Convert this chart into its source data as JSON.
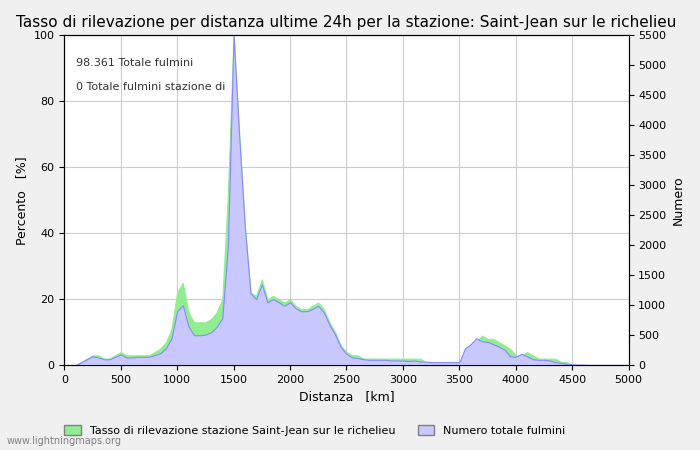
{
  "title": "Tasso di rilevazione per distanza ultime 24h per la stazione: Saint-Jean sur le richelieu",
  "xlabel": "Distanza   [km]",
  "ylabel_left": "Percento   [%]",
  "ylabel_right": "Numero",
  "annotation_line1": "98.361 Totale fulmini",
  "annotation_line2": "0 Totale fulmini stazione di",
  "legend_green": "Tasso di rilevazione stazione Saint-Jean sur le richelieu",
  "legend_blue": "Numero totale fulmini",
  "watermark": "www.lightningmaps.org",
  "xlim": [
    0,
    5000
  ],
  "ylim_left": [
    0,
    100
  ],
  "ylim_right": [
    0,
    5500
  ],
  "xticks": [
    0,
    500,
    1000,
    1500,
    2000,
    2500,
    3000,
    3500,
    4000,
    4500,
    5000
  ],
  "yticks_left": [
    0,
    20,
    40,
    60,
    80,
    100
  ],
  "yticks_right": [
    0,
    500,
    1000,
    1500,
    2000,
    2500,
    3000,
    3500,
    4000,
    4500,
    5000,
    5500
  ],
  "bg_color": "#f0f0f0",
  "plot_bg_color": "#ffffff",
  "fill_blue_color": "#c8c8ff",
  "fill_blue_edge": "#8888ff",
  "fill_green_color": "#90ee90",
  "fill_green_edge": "#90ee90",
  "grid_color": "#cccccc",
  "title_fontsize": 11,
  "label_fontsize": 9,
  "tick_fontsize": 8,
  "x_data": [
    0,
    50,
    100,
    150,
    200,
    250,
    300,
    350,
    400,
    450,
    500,
    550,
    600,
    650,
    700,
    750,
    800,
    850,
    900,
    950,
    1000,
    1050,
    1100,
    1150,
    1200,
    1250,
    1300,
    1350,
    1400,
    1450,
    1500,
    1550,
    1600,
    1650,
    1700,
    1750,
    1800,
    1850,
    1900,
    1950,
    2000,
    2050,
    2100,
    2150,
    2200,
    2250,
    2300,
    2350,
    2400,
    2450,
    2500,
    2550,
    2600,
    2650,
    2700,
    2750,
    2800,
    2850,
    2900,
    2950,
    3000,
    3050,
    3100,
    3150,
    3200,
    3250,
    3300,
    3350,
    3400,
    3450,
    3500,
    3550,
    3600,
    3650,
    3700,
    3750,
    3800,
    3850,
    3900,
    3950,
    4000,
    4050,
    4100,
    4150,
    4200,
    4250,
    4300,
    4350,
    4400,
    4450,
    4500,
    4550,
    4600,
    4650,
    4700,
    4750,
    4800,
    4850,
    4900,
    4950,
    5000
  ],
  "y_percent": [
    0,
    0,
    0,
    1,
    2,
    3,
    3,
    2,
    2,
    3,
    4,
    3,
    3,
    3,
    3,
    3,
    4,
    5,
    7,
    11,
    22,
    25,
    16,
    13,
    13,
    13,
    14,
    16,
    20,
    52,
    100,
    70,
    42,
    22,
    21,
    26,
    20,
    21,
    20,
    19,
    20,
    18,
    17,
    17,
    18,
    19,
    17,
    13,
    10,
    6,
    4,
    3,
    3,
    2,
    2,
    2,
    2,
    2,
    2,
    2,
    2,
    2,
    2,
    2,
    1,
    1,
    1,
    1,
    1,
    1,
    1,
    1,
    6,
    7,
    9,
    8,
    8,
    7,
    6,
    5,
    3,
    3,
    4,
    3,
    2,
    2,
    2,
    2,
    1,
    1,
    0,
    0,
    0,
    0,
    0,
    0,
    0,
    0,
    0,
    0,
    0
  ],
  "y_count": [
    0,
    0,
    0,
    50,
    100,
    150,
    130,
    100,
    100,
    140,
    180,
    130,
    130,
    140,
    140,
    140,
    170,
    200,
    280,
    450,
    900,
    1000,
    650,
    500,
    500,
    510,
    550,
    640,
    780,
    2000,
    5500,
    3800,
    2300,
    1200,
    1100,
    1350,
    1050,
    1100,
    1050,
    990,
    1050,
    950,
    900,
    900,
    940,
    990,
    880,
    670,
    510,
    300,
    190,
    130,
    120,
    100,
    90,
    90,
    90,
    90,
    80,
    80,
    80,
    70,
    80,
    60,
    60,
    50,
    50,
    50,
    50,
    50,
    50,
    280,
    350,
    450,
    400,
    390,
    350,
    310,
    260,
    150,
    140,
    190,
    150,
    100,
    90,
    90,
    80,
    50,
    40,
    20,
    15,
    10,
    10,
    5,
    5,
    5,
    5,
    5,
    5,
    5,
    5
  ]
}
